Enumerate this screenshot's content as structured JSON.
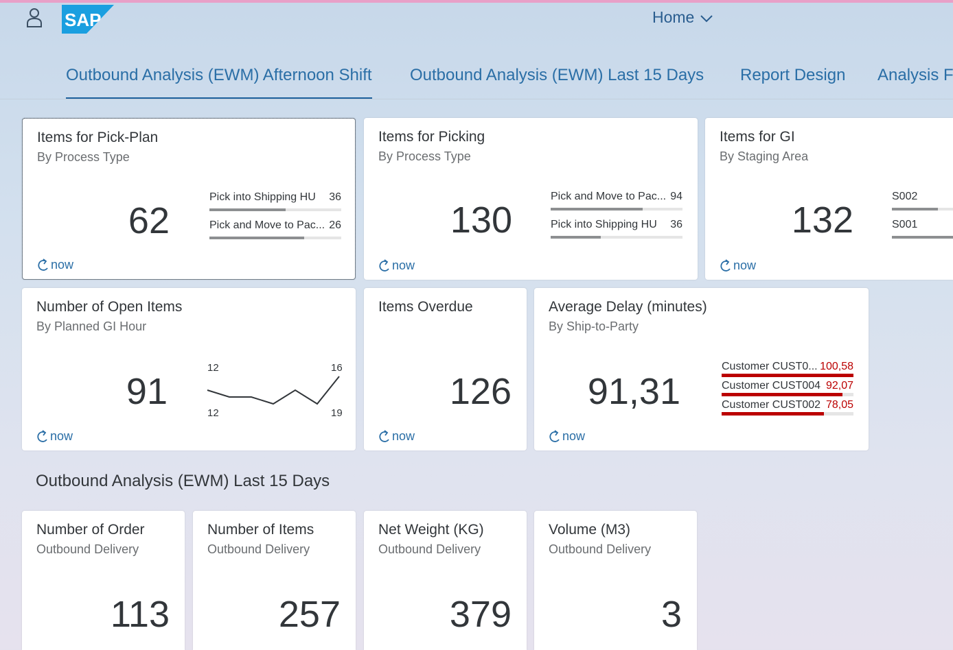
{
  "header": {
    "home_label": "Home",
    "logo_text": "SAP",
    "colors": {
      "accent": "#2a6ea6",
      "logo": "#1a9fe0"
    }
  },
  "tabs": [
    {
      "label": "Outbound Analysis (EWM) Afternoon Shift",
      "active": true
    },
    {
      "label": "Outbound Analysis (EWM) Last 15 Days",
      "active": false
    },
    {
      "label": "Report Design",
      "active": false
    },
    {
      "label": "Analysis F",
      "active": false
    }
  ],
  "refresh_label": "now",
  "tiles": {
    "pick_plan": {
      "title": "Items for Pick-Plan",
      "subtitle": "By Process Type",
      "value": "62",
      "rows": [
        {
          "label": "Pick into Shipping HU",
          "value": "36",
          "fill": 0.58
        },
        {
          "label": "Pick and Move to Pac...",
          "value": "26",
          "fill": 0.72
        }
      ]
    },
    "picking": {
      "title": "Items for Picking",
      "subtitle": "By Process Type",
      "value": "130",
      "rows": [
        {
          "label": "Pick and Move to Pac...",
          "value": "94",
          "fill": 0.7
        },
        {
          "label": "Pick into Shipping HU",
          "value": "36",
          "fill": 0.38
        }
      ]
    },
    "gi": {
      "title": "Items for GI",
      "subtitle": "By Staging Area",
      "value": "132",
      "rows": [
        {
          "label": "S002",
          "value": "",
          "fill": 0.75
        },
        {
          "label": "S001",
          "value": "",
          "fill": 1.0
        }
      ]
    },
    "open_items": {
      "title": "Number of Open Items",
      "subtitle": "By Planned GI Hour",
      "value": "91",
      "line": {
        "top_left": "12",
        "top_right": "16",
        "bottom_left": "12",
        "bottom_right": "19",
        "points": [
          14,
          12,
          12,
          10,
          14,
          10,
          18
        ]
      }
    },
    "overdue": {
      "title": "Items Overdue",
      "value": "126"
    },
    "delay": {
      "title": "Average Delay (minutes)",
      "subtitle": "By Ship-to-Party",
      "value": "91,31",
      "rows": [
        {
          "label": "Customer CUST0...",
          "value": "100,58",
          "fill": 1.0
        },
        {
          "label": "Customer CUST004",
          "value": "92,07",
          "fill": 0.915
        },
        {
          "label": "Customer CUST002",
          "value": "78,05",
          "fill": 0.776
        }
      ]
    }
  },
  "section2": {
    "title": "Outbound Analysis (EWM) Last 15 Days",
    "tiles": [
      {
        "title": "Number of Order",
        "subtitle": "Outbound Delivery",
        "value": "113"
      },
      {
        "title": "Number of Items",
        "subtitle": "Outbound Delivery",
        "value": "257"
      },
      {
        "title": "Net Weight (KG)",
        "subtitle": "Outbound Delivery",
        "value": "379"
      },
      {
        "title": "Volume (M3)",
        "subtitle": "Outbound Delivery",
        "value": "3"
      }
    ]
  }
}
